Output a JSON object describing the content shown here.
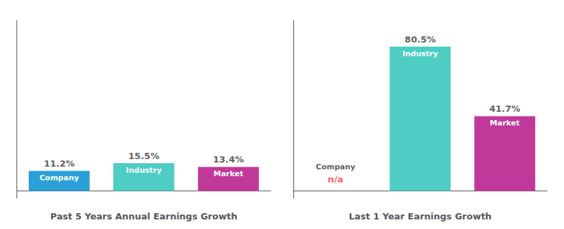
{
  "chart_data": [
    {
      "type": "bar",
      "xlabel": "Past 5 Years Annual Earnings Growth",
      "categories": [
        "Company",
        "Industry",
        "Market"
      ],
      "values": [
        11.2,
        15.5,
        13.4
      ],
      "value_labels": [
        "11.2%",
        "15.5%",
        "13.4%"
      ],
      "colors": [
        "#2b9fd8",
        "#4ecdc4",
        "#c0399a"
      ],
      "ylim": [
        -4.025,
        94.99
      ],
      "grid": false,
      "data_labels": true,
      "tick_labels": false
    },
    {
      "type": "bar",
      "xlabel": "Last 1 Year Earnings Growth",
      "categories": [
        "Company",
        "Industry",
        "Market"
      ],
      "values": [
        null,
        80.5,
        41.7
      ],
      "value_labels": [
        null,
        "80.5%",
        "41.7%"
      ],
      "colors": [
        null,
        "#4ecdc4",
        "#c0399a"
      ],
      "annotations": [
        {
          "text": "n/a",
          "category": "Company",
          "color": "#ff3333"
        }
      ],
      "ylim": [
        -4.025,
        94.99
      ],
      "grid": false,
      "data_labels": true,
      "tick_labels": false
    }
  ]
}
